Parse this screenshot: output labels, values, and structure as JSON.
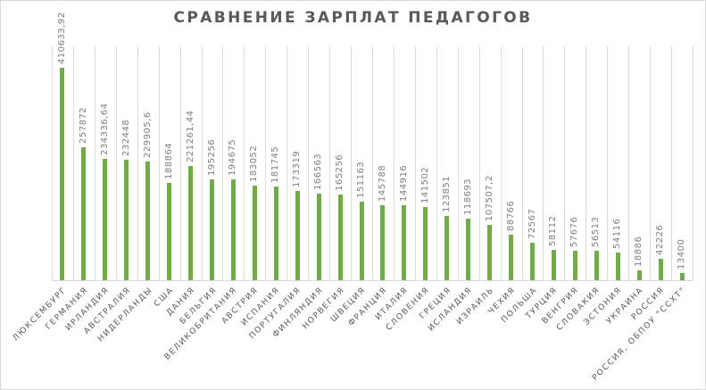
{
  "chart_data": {
    "type": "bar",
    "title": "СРАВНЕНИЕ ЗАРПЛАТ ПЕДАГОГОВ",
    "xlabel": "",
    "ylabel": "",
    "ylim": [
      0,
      410633.92
    ],
    "grid": "vertical category gridlines",
    "legend": null,
    "bar_color": "#70ad47",
    "categories": [
      "ЛЮКСЕМБУРГ",
      "ГЕРМАНИЯ",
      "ИРЛАНДИЯ",
      "АВСТРАЛИЯ",
      "НИДЕРЛАНДЫ",
      "США",
      "ДАНИЯ",
      "БЕЛЬГИЯ",
      "ВЕЛИКОБРИТАНИЯ",
      "АВСТРИЯ",
      "ИСПАНИЯ",
      "ПОРТУГАЛИЯ",
      "ФИНЛЯНДИЯ",
      "НОРВЕГИЯ",
      "ШВЕЦИЯ",
      "ФРАНЦИЯ",
      "ИТАЛИЯ",
      "СЛОВЕНИЯ",
      "ГРЕЦИЯ",
      "ИСЛАНДИЯ",
      "ИЗРАИЛЬ",
      "ЧЕХИЯ",
      "ПОЛЬША",
      "ТУРЦИЯ",
      "ВЕНГРИЯ",
      "СЛОВАКИЯ",
      "ЭСТОНИЯ",
      "УКРАИНА",
      "РОССИЯ",
      "РОССИЯ, ОБПОУ \"ССХТ\""
    ],
    "values": [
      410633.92,
      257872,
      234336.64,
      232448,
      229905.6,
      188864,
      221261.44,
      195256,
      194675,
      183052,
      181745,
      173319,
      166563,
      165256,
      151163,
      145788,
      144916,
      141502,
      123851,
      118693,
      107507.2,
      88766,
      72567,
      58112,
      57676,
      56513,
      54116,
      18886,
      42226,
      13400
    ],
    "value_labels": [
      "410633,92",
      "257872",
      "234336,64",
      "232448",
      "229905,6",
      "188864",
      "221261,44",
      "195256",
      "194675",
      "183052",
      "181745",
      "173319",
      "166563",
      "165256",
      "151163",
      "145788",
      "144916",
      "141502",
      "123851",
      "118693",
      "107507,2",
      "88766",
      "72567",
      "58112",
      "57676",
      "56513",
      "54116",
      "18886",
      "42226",
      "13400"
    ]
  }
}
